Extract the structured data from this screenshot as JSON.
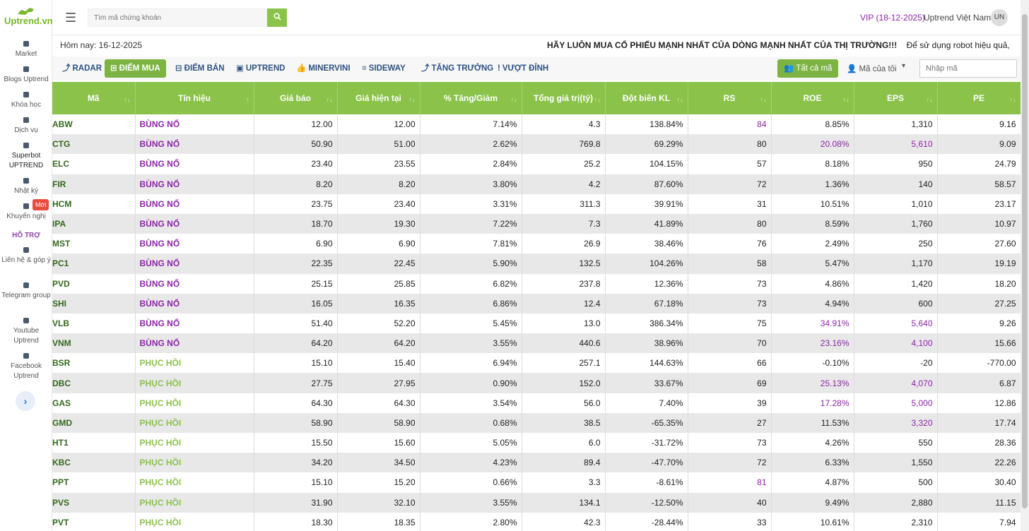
{
  "brand": {
    "name": "Uptrend.vn",
    "color": "#76b82a"
  },
  "sidebar": {
    "items": [
      {
        "label": "Market",
        "icon": "home-icon"
      },
      {
        "label": "Blogs Uptrend",
        "icon": "document-icon"
      },
      {
        "label": "Khóa học",
        "icon": "monitor-icon"
      },
      {
        "label": "Dịch vụ",
        "icon": "handshake-icon"
      },
      {
        "label": "Superbot UPTREND",
        "icon": "robot-icon"
      },
      {
        "label": "Nhật ký",
        "icon": "book-icon"
      },
      {
        "label": "Khuyến nghị",
        "icon": "star-icon",
        "badge": "Mới"
      }
    ],
    "support_title": "HỖ TRỢ",
    "support_items": [
      {
        "label": "Liên hệ & góp ý",
        "icon": "edit-icon"
      },
      {
        "label": "Telegram group",
        "icon": "telegram-icon"
      },
      {
        "label": "Youtube Uptrend",
        "icon": "youtube-icon"
      },
      {
        "label": "Facebook Uptrend",
        "icon": "facebook-icon"
      }
    ],
    "expand_glyph": "›"
  },
  "header": {
    "search_placeholder": "Tìm mã chứng khoán",
    "vip": "VIP (18-12-2025)",
    "user_name": "Uptrend Việt Nam",
    "avatar": "UN"
  },
  "infobar": {
    "today": "Hôm nay: 16-12-2025",
    "marquee_bold": "HÃY LUÔN MUA CỔ PHIẾU MẠNH NHẤT CỦA DÒNG MẠNH NHẤT CỦA THỊ TRƯỜNG!!!",
    "marquee_rest": "Để sử dụng robot hiệu quả, các bạn tham"
  },
  "tabs": [
    {
      "label": "RADAR",
      "icon": "⤴"
    },
    {
      "label": "ĐIỂM MUA",
      "icon": "⊞",
      "active": true
    },
    {
      "label": "ĐIỂM BÁN",
      "icon": "⊟"
    },
    {
      "label": "UPTREND",
      "icon": "▣"
    },
    {
      "label": "MINERVINI",
      "icon": "👍"
    },
    {
      "label": "SIDEWAY",
      "icon": "≡"
    },
    {
      "label": "TĂNG TRƯỞNG",
      "icon": "⤴"
    },
    {
      "label": "VƯỢT ĐỈNH",
      "icon": "!"
    }
  ],
  "toolbar": {
    "all_codes": "Tất cả mã",
    "my_codes": "Mã của tôi",
    "code_input_placeholder": "Nhập mã"
  },
  "table": {
    "columns": [
      "Mã",
      "Tín hiệu",
      "Giá báo",
      "Giá hiện tại",
      "% Tăng/Giảm",
      "Tổng giá trị(tỷ)",
      "Đột biến KL",
      "RS",
      "ROE",
      "EPS",
      "PE"
    ],
    "rows": [
      [
        "ABW",
        "BÙNG NỔ",
        "12.00",
        "12.00",
        "7.14%",
        "4.3",
        "138.84%",
        "84",
        "8.85%",
        "1,310",
        "9.16"
      ],
      [
        "CTG",
        "BÙNG NỔ",
        "50.90",
        "51.00",
        "2.62%",
        "769.8",
        "69.29%",
        "80",
        "20.08%",
        "5,610",
        "9.09"
      ],
      [
        "ELC",
        "BÙNG NỔ",
        "23.40",
        "23.55",
        "2.84%",
        "25.2",
        "104.15%",
        "57",
        "8.18%",
        "950",
        "24.79"
      ],
      [
        "FIR",
        "BÙNG NỔ",
        "8.20",
        "8.20",
        "3.80%",
        "4.2",
        "87.60%",
        "72",
        "1.36%",
        "140",
        "58.57"
      ],
      [
        "HCM",
        "BÙNG NỔ",
        "23.75",
        "23.40",
        "3.31%",
        "311.3",
        "39.91%",
        "31",
        "10.51%",
        "1,010",
        "23.17"
      ],
      [
        "IPA",
        "BÙNG NỔ",
        "18.70",
        "19.30",
        "7.22%",
        "7.3",
        "41.89%",
        "80",
        "8.59%",
        "1,760",
        "10.97"
      ],
      [
        "MST",
        "BÙNG NỔ",
        "6.90",
        "6.90",
        "7.81%",
        "26.9",
        "38.46%",
        "76",
        "2.49%",
        "250",
        "27.60"
      ],
      [
        "PC1",
        "BÙNG NỔ",
        "22.35",
        "22.45",
        "5.90%",
        "132.5",
        "104.26%",
        "58",
        "5.47%",
        "1,170",
        "19.19"
      ],
      [
        "PVD",
        "BÙNG NỔ",
        "25.15",
        "25.85",
        "6.82%",
        "237.8",
        "12.36%",
        "73",
        "4.86%",
        "1,420",
        "18.20"
      ],
      [
        "SHI",
        "BÙNG NỔ",
        "16.05",
        "16.35",
        "6.86%",
        "12.4",
        "67.18%",
        "73",
        "4.94%",
        "600",
        "27.25"
      ],
      [
        "VLB",
        "BÙNG NỔ",
        "51.40",
        "52.20",
        "5.45%",
        "13.0",
        "386.34%",
        "75",
        "34.91%",
        "5,640",
        "9.26"
      ],
      [
        "VNM",
        "BÙNG NỔ",
        "64.20",
        "64.20",
        "3.55%",
        "440.6",
        "38.96%",
        "70",
        "23.16%",
        "4,100",
        "15.66"
      ],
      [
        "BSR",
        "PHỤC HỒI",
        "15.10",
        "15.40",
        "6.94%",
        "257.1",
        "144.63%",
        "66",
        "-0.10%",
        "-20",
        "-770.00"
      ],
      [
        "DBC",
        "PHỤC HỒI",
        "27.75",
        "27.95",
        "0.90%",
        "152.0",
        "33.67%",
        "69",
        "25.13%",
        "4,070",
        "6.87"
      ],
      [
        "GAS",
        "PHỤC HỒI",
        "64.30",
        "64.30",
        "3.54%",
        "56.0",
        "7.40%",
        "39",
        "17.28%",
        "5,000",
        "12.86"
      ],
      [
        "GMD",
        "PHỤC HỒI",
        "58.90",
        "58.90",
        "0.68%",
        "38.5",
        "-65.35%",
        "27",
        "11.53%",
        "3,320",
        "17.74"
      ],
      [
        "HT1",
        "PHỤC HỒI",
        "15.50",
        "15.60",
        "5.05%",
        "6.0",
        "-31.72%",
        "73",
        "4.26%",
        "550",
        "28.36"
      ],
      [
        "KBC",
        "PHỤC HỒI",
        "34.20",
        "34.50",
        "4.23%",
        "89.4",
        "-47.70%",
        "72",
        "6.33%",
        "1,550",
        "22.26"
      ],
      [
        "PPT",
        "PHỤC HỒI",
        "15.10",
        "15.20",
        "0.66%",
        "3.3",
        "-8.61%",
        "81",
        "4.87%",
        "500",
        "30.40"
      ],
      [
        "PVS",
        "PHỤC HỒI",
        "31.90",
        "32.10",
        "3.55%",
        "134.1",
        "-12.50%",
        "40",
        "9.49%",
        "2,880",
        "11.15"
      ],
      [
        "PVT",
        "PHỤC HỒI",
        "18.30",
        "18.35",
        "2.80%",
        "42.3",
        "-28.44%",
        "33",
        "10.61%",
        "2,310",
        "7.94"
      ]
    ],
    "highlight_purple": {
      "rs": [
        "84",
        "81"
      ],
      "roe": [
        "20.08%",
        "34.91%",
        "23.16%",
        "25.13%",
        "17.28%"
      ],
      "eps": [
        "5,610",
        "5,640",
        "4,100",
        "4,070",
        "5,000",
        "3,320"
      ]
    },
    "colors": {
      "header_bg": "#8bc34a",
      "boom": "#8e24aa",
      "recovery": "#8bc34a",
      "code": "#33691e",
      "highlight": "#8e24aa"
    }
  }
}
